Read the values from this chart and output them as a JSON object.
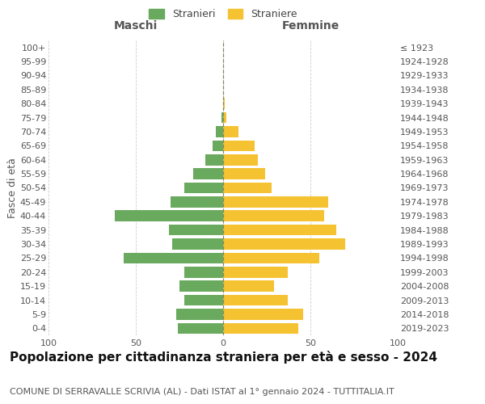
{
  "age_groups": [
    "0-4",
    "5-9",
    "10-14",
    "15-19",
    "20-24",
    "25-29",
    "30-34",
    "35-39",
    "40-44",
    "45-49",
    "50-54",
    "55-59",
    "60-64",
    "65-69",
    "70-74",
    "75-79",
    "80-84",
    "85-89",
    "90-94",
    "95-99",
    "100+"
  ],
  "birth_years": [
    "2019-2023",
    "2014-2018",
    "2009-2013",
    "2004-2008",
    "1999-2003",
    "1994-1998",
    "1989-1993",
    "1984-1988",
    "1979-1983",
    "1974-1978",
    "1969-1973",
    "1964-1968",
    "1959-1963",
    "1954-1958",
    "1949-1953",
    "1944-1948",
    "1939-1943",
    "1934-1938",
    "1929-1933",
    "1924-1928",
    "≤ 1923"
  ],
  "maschi": [
    26,
    27,
    22,
    25,
    22,
    57,
    29,
    31,
    62,
    30,
    22,
    17,
    10,
    6,
    4,
    1,
    0,
    0,
    0,
    0,
    0
  ],
  "femmine": [
    43,
    46,
    37,
    29,
    37,
    55,
    70,
    65,
    58,
    60,
    28,
    24,
    20,
    18,
    9,
    2,
    1,
    0,
    0,
    0,
    0
  ],
  "color_maschi": "#6aaa5e",
  "color_femmine": "#f5c232",
  "background_color": "#ffffff",
  "grid_color": "#cccccc",
  "title": "Popolazione per cittadinanza straniera per età e sesso - 2024",
  "subtitle": "COMUNE DI SERRAVALLE SCRIVIA (AL) - Dati ISTAT al 1° gennaio 2024 - TUTTITALIA.IT",
  "ylabel_left": "Fasce di età",
  "label_maschi": "Stranieri",
  "label_femmine": "Straniere",
  "header_maschi": "Maschi",
  "header_femmine": "Femmine",
  "xlim": 100,
  "title_fontsize": 11,
  "subtitle_fontsize": 8,
  "tick_fontsize": 8,
  "label_fontsize": 9
}
